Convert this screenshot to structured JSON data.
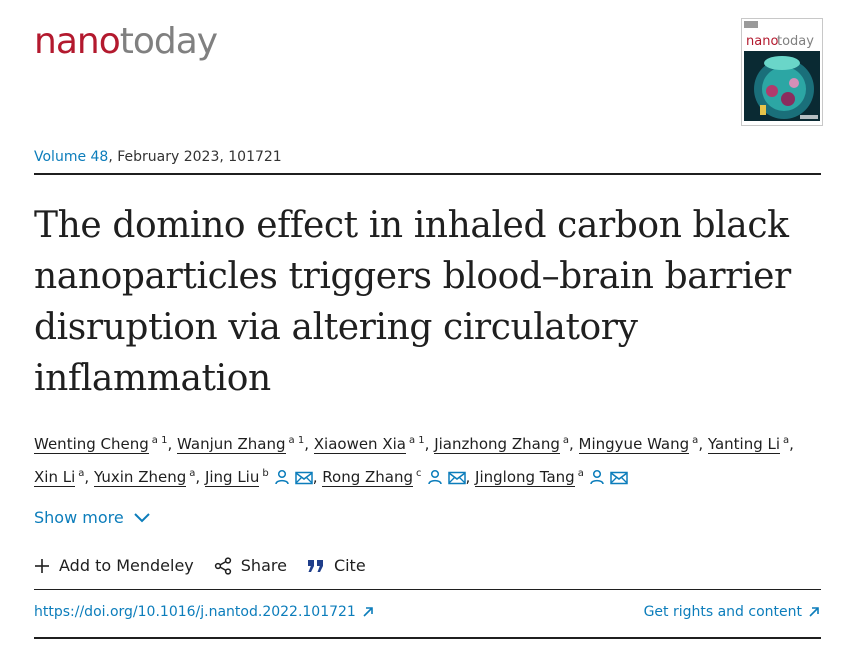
{
  "journal": {
    "logo_part1": "nano",
    "logo_part2": "today"
  },
  "cover": {
    "title_part1": "nano",
    "title_part2": "today"
  },
  "issue": {
    "volume": "Volume 48",
    "rest": ", February 2023, 101721"
  },
  "article": {
    "title": "The domino effect in inhaled carbon black nanoparticles triggers blood–brain barrier disruption via altering circulatory inflammation"
  },
  "authors": [
    {
      "name": "Wenting Cheng",
      "sup": "a 1",
      "sep": ", "
    },
    {
      "name": "Wanjun Zhang",
      "sup": "a 1",
      "sep": ", "
    },
    {
      "name": "Xiaowen Xia",
      "sup": "a 1",
      "sep": ", "
    },
    {
      "name": "Jianzhong Zhang",
      "sup": "a",
      "sep": ", "
    },
    {
      "name": "Mingyue Wang",
      "sup": "a",
      "sep": ", "
    },
    {
      "name": "Yanting Li",
      "sup": "a",
      "sep": ", "
    },
    {
      "name": "Xin Li",
      "sup": "a",
      "sep": ", "
    },
    {
      "name": "Yuxin Zheng",
      "sup": "a",
      "sep": ", "
    },
    {
      "name": "Jing Liu",
      "sup": "b",
      "sep": ", "
    },
    {
      "name": "Rong Zhang",
      "sup": "c",
      "sep": ", "
    },
    {
      "name": "Jinglong Tang",
      "sup": "a",
      "sep": ""
    }
  ],
  "show_more": "Show more",
  "actions": {
    "mendeley": "Add to Mendeley",
    "share": "Share",
    "cite": "Cite"
  },
  "doi": "https://doi.org/10.1016/j.nantod.2022.101721",
  "rights": "Get rights and content",
  "colors": {
    "link": "#0c7dbb",
    "brand_red": "#b3192e",
    "brand_gray": "#808080",
    "text": "#1f1f1f"
  },
  "icons": {
    "author_contact": [
      "person-icon",
      "envelope-icon"
    ],
    "show_more": "chevron-down-icon",
    "mendeley": "plus-icon",
    "share": "share-icon",
    "cite": "quote-icon",
    "external": "arrow-up-right-icon"
  }
}
